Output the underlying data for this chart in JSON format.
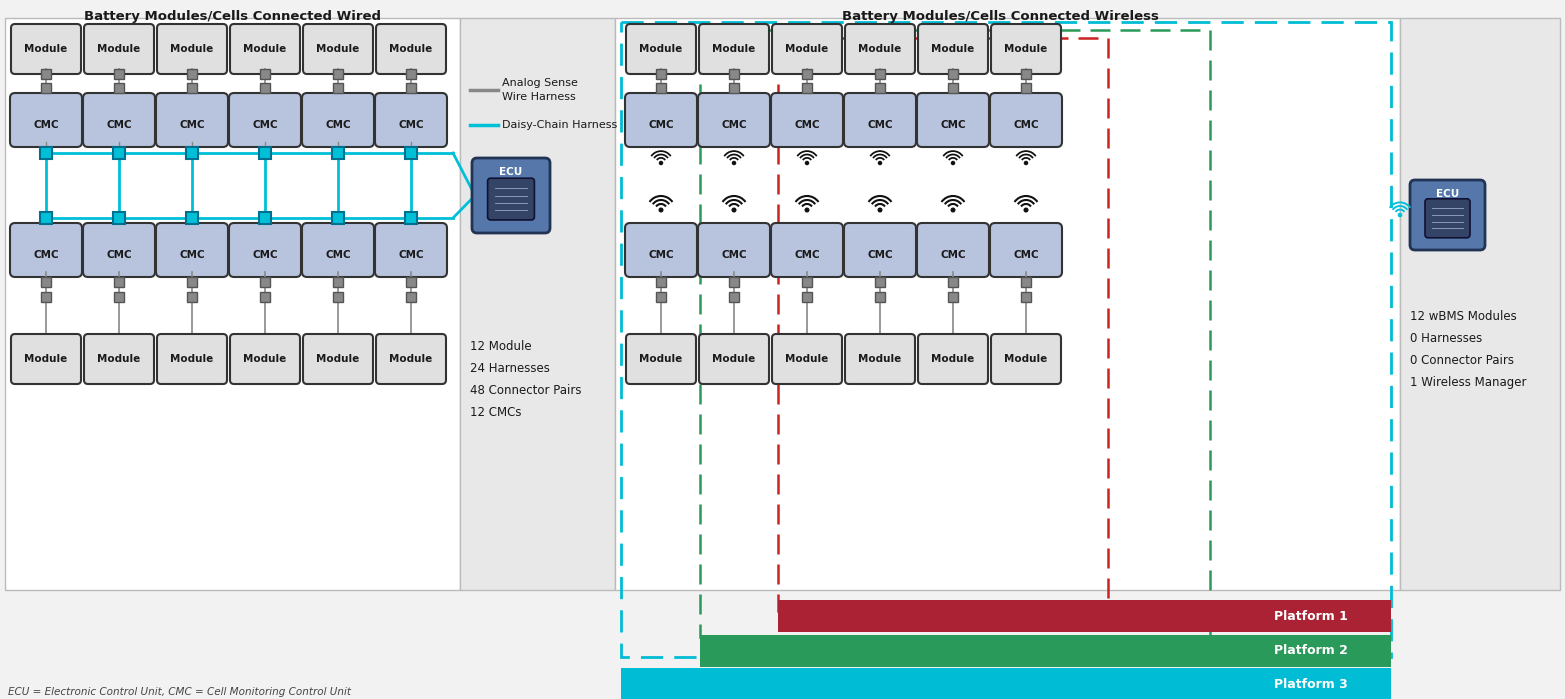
{
  "title_left": "Battery Modules/Cells Connected Wired",
  "title_right": "Battery Modules/Cells Connected Wireless",
  "legend_analog": "Analog Sense\nWire Harness",
  "legend_daisy": "Daisy-Chain Harness",
  "stats_left": "12 Module\n24 Harnesses\n48 Connector Pairs\n12 CMCs",
  "stats_right": "12 wBMS Modules\n0 Harnesses\n0 Connector Pairs\n1 Wireless Manager",
  "footnote": "ECU = Electronic Control Unit, CMC = Cell Monitoring Control Unit",
  "platform1": "Platform 1",
  "platform2": "Platform 2",
  "platform3": "Platform 3",
  "bg_color": "#f2f2f2",
  "white": "#ffffff",
  "light_gray": "#e8e8e8",
  "module_fill": "#e0e0e0",
  "module_border": "#333333",
  "cmc_fill": "#b8c4de",
  "cmc_border": "#333333",
  "conn_gray_fill": "#888888",
  "conn_gray_border": "#555555",
  "cyan": "#00c0d8",
  "ecu_fill": "#5577aa",
  "ecu_inner": "#334466",
  "p1_color": "#aa2233",
  "p2_color": "#2a9a5a",
  "p3_color": "#00bcd4",
  "dash_cyan": "#00bcd4",
  "dash_green": "#2a9a5a",
  "dash_red": "#cc2222",
  "text_dark": "#1a1a1a"
}
